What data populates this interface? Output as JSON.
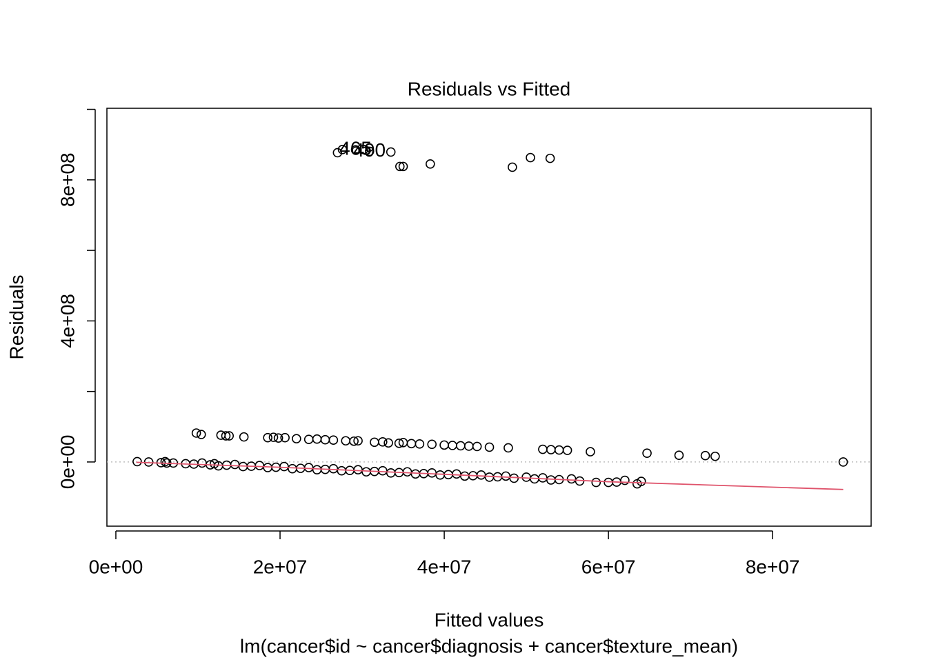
{
  "chart_data": {
    "type": "scatter",
    "title": "Residuals vs Fitted",
    "xlabel": "Fitted values",
    "ylabel": "Residuals",
    "subtitle": "lm(cancer$id ~ cancer$diagnosis + cancer$texture_mean)",
    "xlim": [
      -1090000.0,
      92000000.0
    ],
    "ylim": [
      -182000000.0,
      1003000000.0
    ],
    "xticks": [
      {
        "value": 0,
        "label": "0e+00"
      },
      {
        "value": 20000000.0,
        "label": "2e+07"
      },
      {
        "value": 40000000.0,
        "label": "4e+07"
      },
      {
        "value": 60000000.0,
        "label": "6e+07"
      },
      {
        "value": 80000000.0,
        "label": "8e+07"
      }
    ],
    "yticks": [
      {
        "value": 0,
        "label": "0e+00"
      },
      {
        "value": 400000000.0,
        "label": "4e+08"
      },
      {
        "value": 800000000.0,
        "label": "8e+08"
      }
    ],
    "yminor_ticks": [
      200000000.0,
      600000000.0,
      1000000000.0
    ],
    "hline": 0,
    "color": "#000000",
    "x": [
      27000000.0,
      27600000.0,
      29200000.0,
      30200000.0,
      30900000.0,
      33500000.0,
      34600000.0,
      35000000.0,
      38300000.0,
      48300000.0,
      50500000.0,
      52900000.0,
      9800000.0,
      10400000.0,
      12800000.0,
      13400000.0,
      13800000.0,
      15600000.0,
      18500000.0,
      19200000.0,
      19800000.0,
      20600000.0,
      22000000.0,
      23500000.0,
      24500000.0,
      25500000.0,
      26500000.0,
      28000000.0,
      29000000.0,
      29500000.0,
      31500000.0,
      32500000.0,
      33200000.0,
      34500000.0,
      35000000.0,
      36000000.0,
      37000000.0,
      38500000.0,
      40000000.0,
      41000000.0,
      42000000.0,
      43000000.0,
      44000000.0,
      45500000.0,
      47800000.0,
      52000000.0,
      53000000.0,
      54000000.0,
      55000000.0,
      57800000.0,
      64700000.0,
      68600000.0,
      71800000.0,
      73000000.0,
      2600000.0,
      4000000.0,
      5500000.0,
      6000000.0,
      6200000.0,
      7000000.0,
      8500000.0,
      9500000.0,
      10500000.0,
      11500000.0,
      12000000.0,
      12500000.0,
      13500000.0,
      14500000.0,
      15500000.0,
      16500000.0,
      17500000.0,
      18500000.0,
      19500000.0,
      20500000.0,
      21500000.0,
      22500000.0,
      23500000.0,
      24500000.0,
      25500000.0,
      26500000.0,
      27500000.0,
      28500000.0,
      29500000.0,
      30500000.0,
      31500000.0,
      32500000.0,
      33500000.0,
      34500000.0,
      35500000.0,
      36500000.0,
      37500000.0,
      38500000.0,
      39500000.0,
      40500000.0,
      41500000.0,
      42500000.0,
      43500000.0,
      44500000.0,
      45500000.0,
      46500000.0,
      47500000.0,
      48500000.0,
      50000000.0,
      51000000.0,
      52000000.0,
      53000000.0,
      54000000.0,
      55500000.0,
      56500000.0,
      58500000.0,
      60000000.0,
      61000000.0,
      62000000.0,
      63500000.0,
      64000000.0,
      88600000.0
    ],
    "y": [
      877000000.0,
      886000000.0,
      885000000.0,
      886000000.0,
      881000000.0,
      879000000.0,
      838000000.0,
      838000000.0,
      845000000.0,
      836000000.0,
      863000000.0,
      861000000.0,
      82000000.0,
      78000000.0,
      76000000.0,
      74000000.0,
      74000000.0,
      71000000.0,
      69000000.0,
      70000000.0,
      68000000.0,
      69000000.0,
      66000000.0,
      64000000.0,
      65000000.0,
      63000000.0,
      62000000.0,
      60000000.0,
      59000000.0,
      60000000.0,
      56000000.0,
      57000000.0,
      54000000.0,
      53000000.0,
      55000000.0,
      52000000.0,
      51000000.0,
      50000000.0,
      48000000.0,
      47000000.0,
      46000000.0,
      45000000.0,
      44000000.0,
      42000000.0,
      40000000.0,
      36000000.0,
      35000000.0,
      34000000.0,
      33000000.0,
      29000000.0,
      25000000.0,
      19000000.0,
      18000000.0,
      16000000.0,
      1000000.0,
      0,
      -2000000.0,
      1000000.0,
      -3000000.0,
      -3000000.0,
      -5000000.0,
      -6000000.0,
      -3000000.0,
      -8000000.0,
      -5000000.0,
      -11000000.0,
      -9000000.0,
      -7000000.0,
      -13000000.0,
      -12000000.0,
      -10000000.0,
      -16000000.0,
      -15000000.0,
      -13000000.0,
      -19000000.0,
      -18000000.0,
      -16000000.0,
      -22000000.0,
      -21000000.0,
      -19000000.0,
      -25000000.0,
      -24000000.0,
      -22000000.0,
      -28000000.0,
      -27000000.0,
      -25000000.0,
      -31000000.0,
      -30000000.0,
      -28000000.0,
      -34000000.0,
      -33000000.0,
      -31000000.0,
      -37000000.0,
      -36000000.0,
      -34000000.0,
      -40000000.0,
      -39000000.0,
      -37000000.0,
      -43000000.0,
      -42000000.0,
      -40000000.0,
      -46000000.0,
      -43000000.0,
      -48000000.0,
      -45000000.0,
      -51000000.0,
      -50000000.0,
      -48000000.0,
      -54000000.0,
      -58000000.0,
      -58000000.0,
      -57000000.0,
      -52000000.0,
      -62000000.0,
      -55000000.0,
      0
    ],
    "annotations": [
      {
        "text": "465",
        "x": 29200000.0,
        "y": 885000000.0
      },
      {
        "text": "490",
        "x": 30900000.0,
        "y": 881000000.0
      }
    ],
    "smooth": {
      "color": "#DF536B",
      "x": [
        2500000.0,
        20000000.0,
        40000000.0,
        60000000.0,
        88600000.0
      ],
      "y": [
        -1000000.0,
        -15000000.0,
        -35000000.0,
        -56000000.0,
        -78000000.0
      ]
    },
    "hline_color": "#BEBEBE"
  }
}
